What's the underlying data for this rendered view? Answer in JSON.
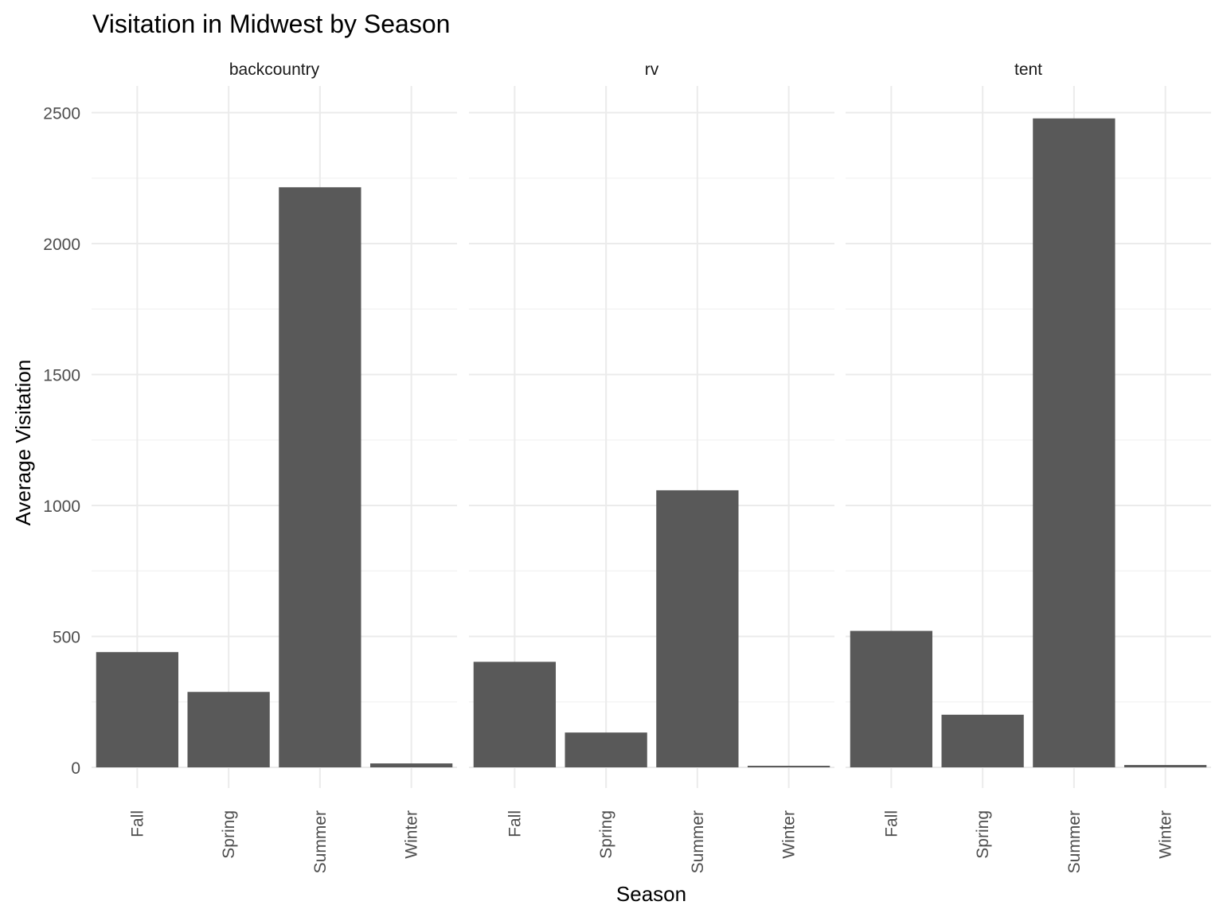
{
  "chart_data": {
    "type": "bar",
    "title": "Visitation in Midwest by Season",
    "xlabel": "Season",
    "ylabel": "Average Visitation",
    "categories": [
      "Fall",
      "Spring",
      "Summer",
      "Winter"
    ],
    "ylim": [
      0,
      2600
    ],
    "yticks": [
      0,
      500,
      1000,
      1500,
      2000,
      2500
    ],
    "grid": true,
    "legend": "none",
    "bar_color": "#595959",
    "facets": [
      {
        "name": "backcountry",
        "values": [
          440,
          288,
          2215,
          15
        ]
      },
      {
        "name": "rv",
        "values": [
          403,
          133,
          1058,
          6
        ]
      },
      {
        "name": "tent",
        "values": [
          521,
          201,
          2478,
          9
        ]
      }
    ]
  }
}
